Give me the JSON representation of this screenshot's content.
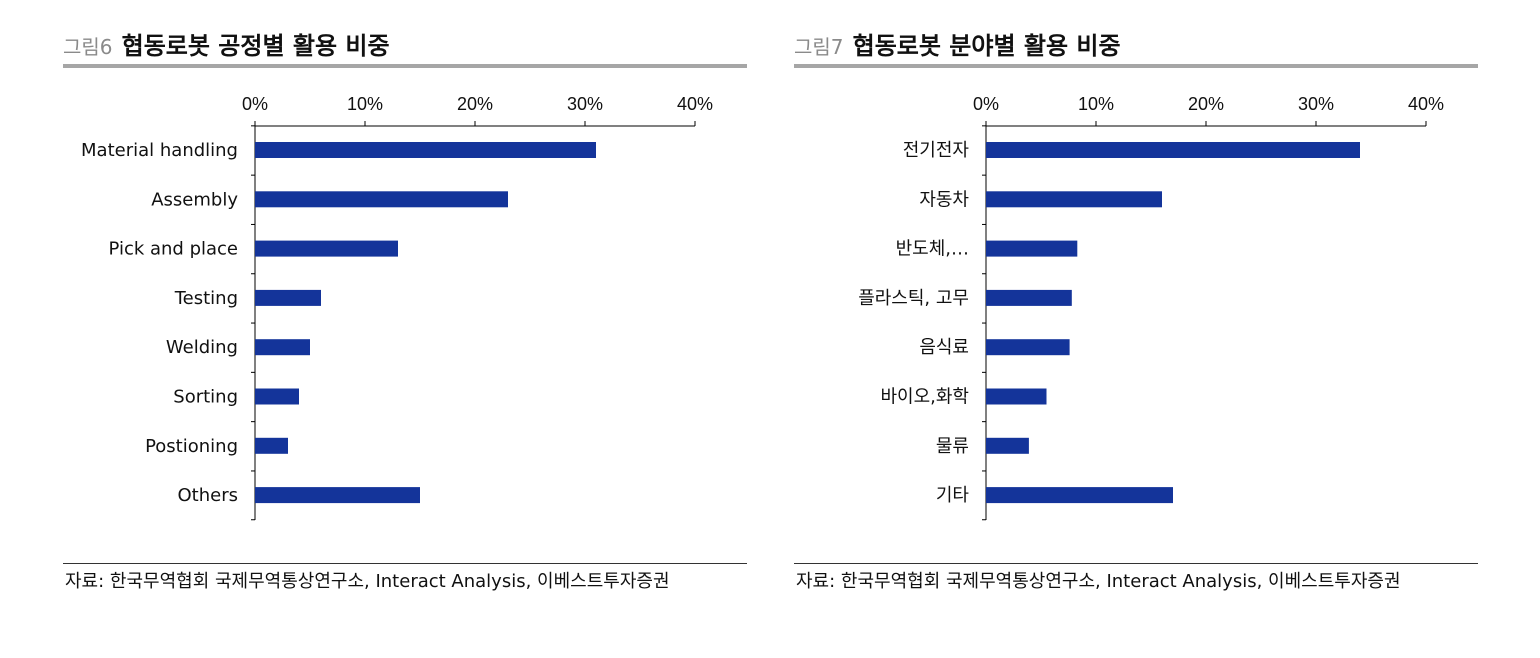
{
  "figures": [
    {
      "fig_num": "그림6",
      "title": "협동로봇 공정별 활용 비중",
      "source": "자료: 한국무역협회 국제무역통상연구소, Interact Analysis, 이베스트투자증권"
    },
    {
      "fig_num": "그림7",
      "title": "협동로봇 분야별 활용 비중",
      "source": "자료: 한국무역협회 국제무역통상연구소, Interact Analysis, 이베스트투자증권"
    }
  ],
  "chart_data": [
    {
      "type": "bar",
      "orientation": "horizontal",
      "title": "협동로봇 공정별 활용 비중",
      "categories": [
        "Material handling",
        "Assembly",
        "Pick and place",
        "Testing",
        "Welding",
        "Sorting",
        "Postioning",
        "Others"
      ],
      "values": [
        31,
        23,
        13,
        6,
        5,
        4,
        3,
        15
      ],
      "unit": "%",
      "xlim": [
        0,
        40
      ],
      "ticks": [
        0,
        10,
        20,
        30,
        40
      ],
      "tick_labels": [
        "0%",
        "10%",
        "20%",
        "30%",
        "40%"
      ],
      "bar_color": "#14349a",
      "axis_position": "top",
      "grid": false
    },
    {
      "type": "bar",
      "orientation": "horizontal",
      "title": "협동로봇 분야별 활용 비중",
      "categories": [
        "전기전자",
        "자동차",
        "반도체,…",
        "플라스틱, 고무",
        "음식료",
        "바이오,화학",
        "물류",
        "기타"
      ],
      "values": [
        34,
        16,
        8.3,
        7.8,
        7.6,
        5.5,
        3.9,
        17
      ],
      "unit": "%",
      "xlim": [
        0,
        40
      ],
      "ticks": [
        0,
        10,
        20,
        30,
        40
      ],
      "tick_labels": [
        "0%",
        "10%",
        "20%",
        "30%",
        "40%"
      ],
      "bar_color": "#14349a",
      "axis_position": "top",
      "grid": false
    }
  ]
}
